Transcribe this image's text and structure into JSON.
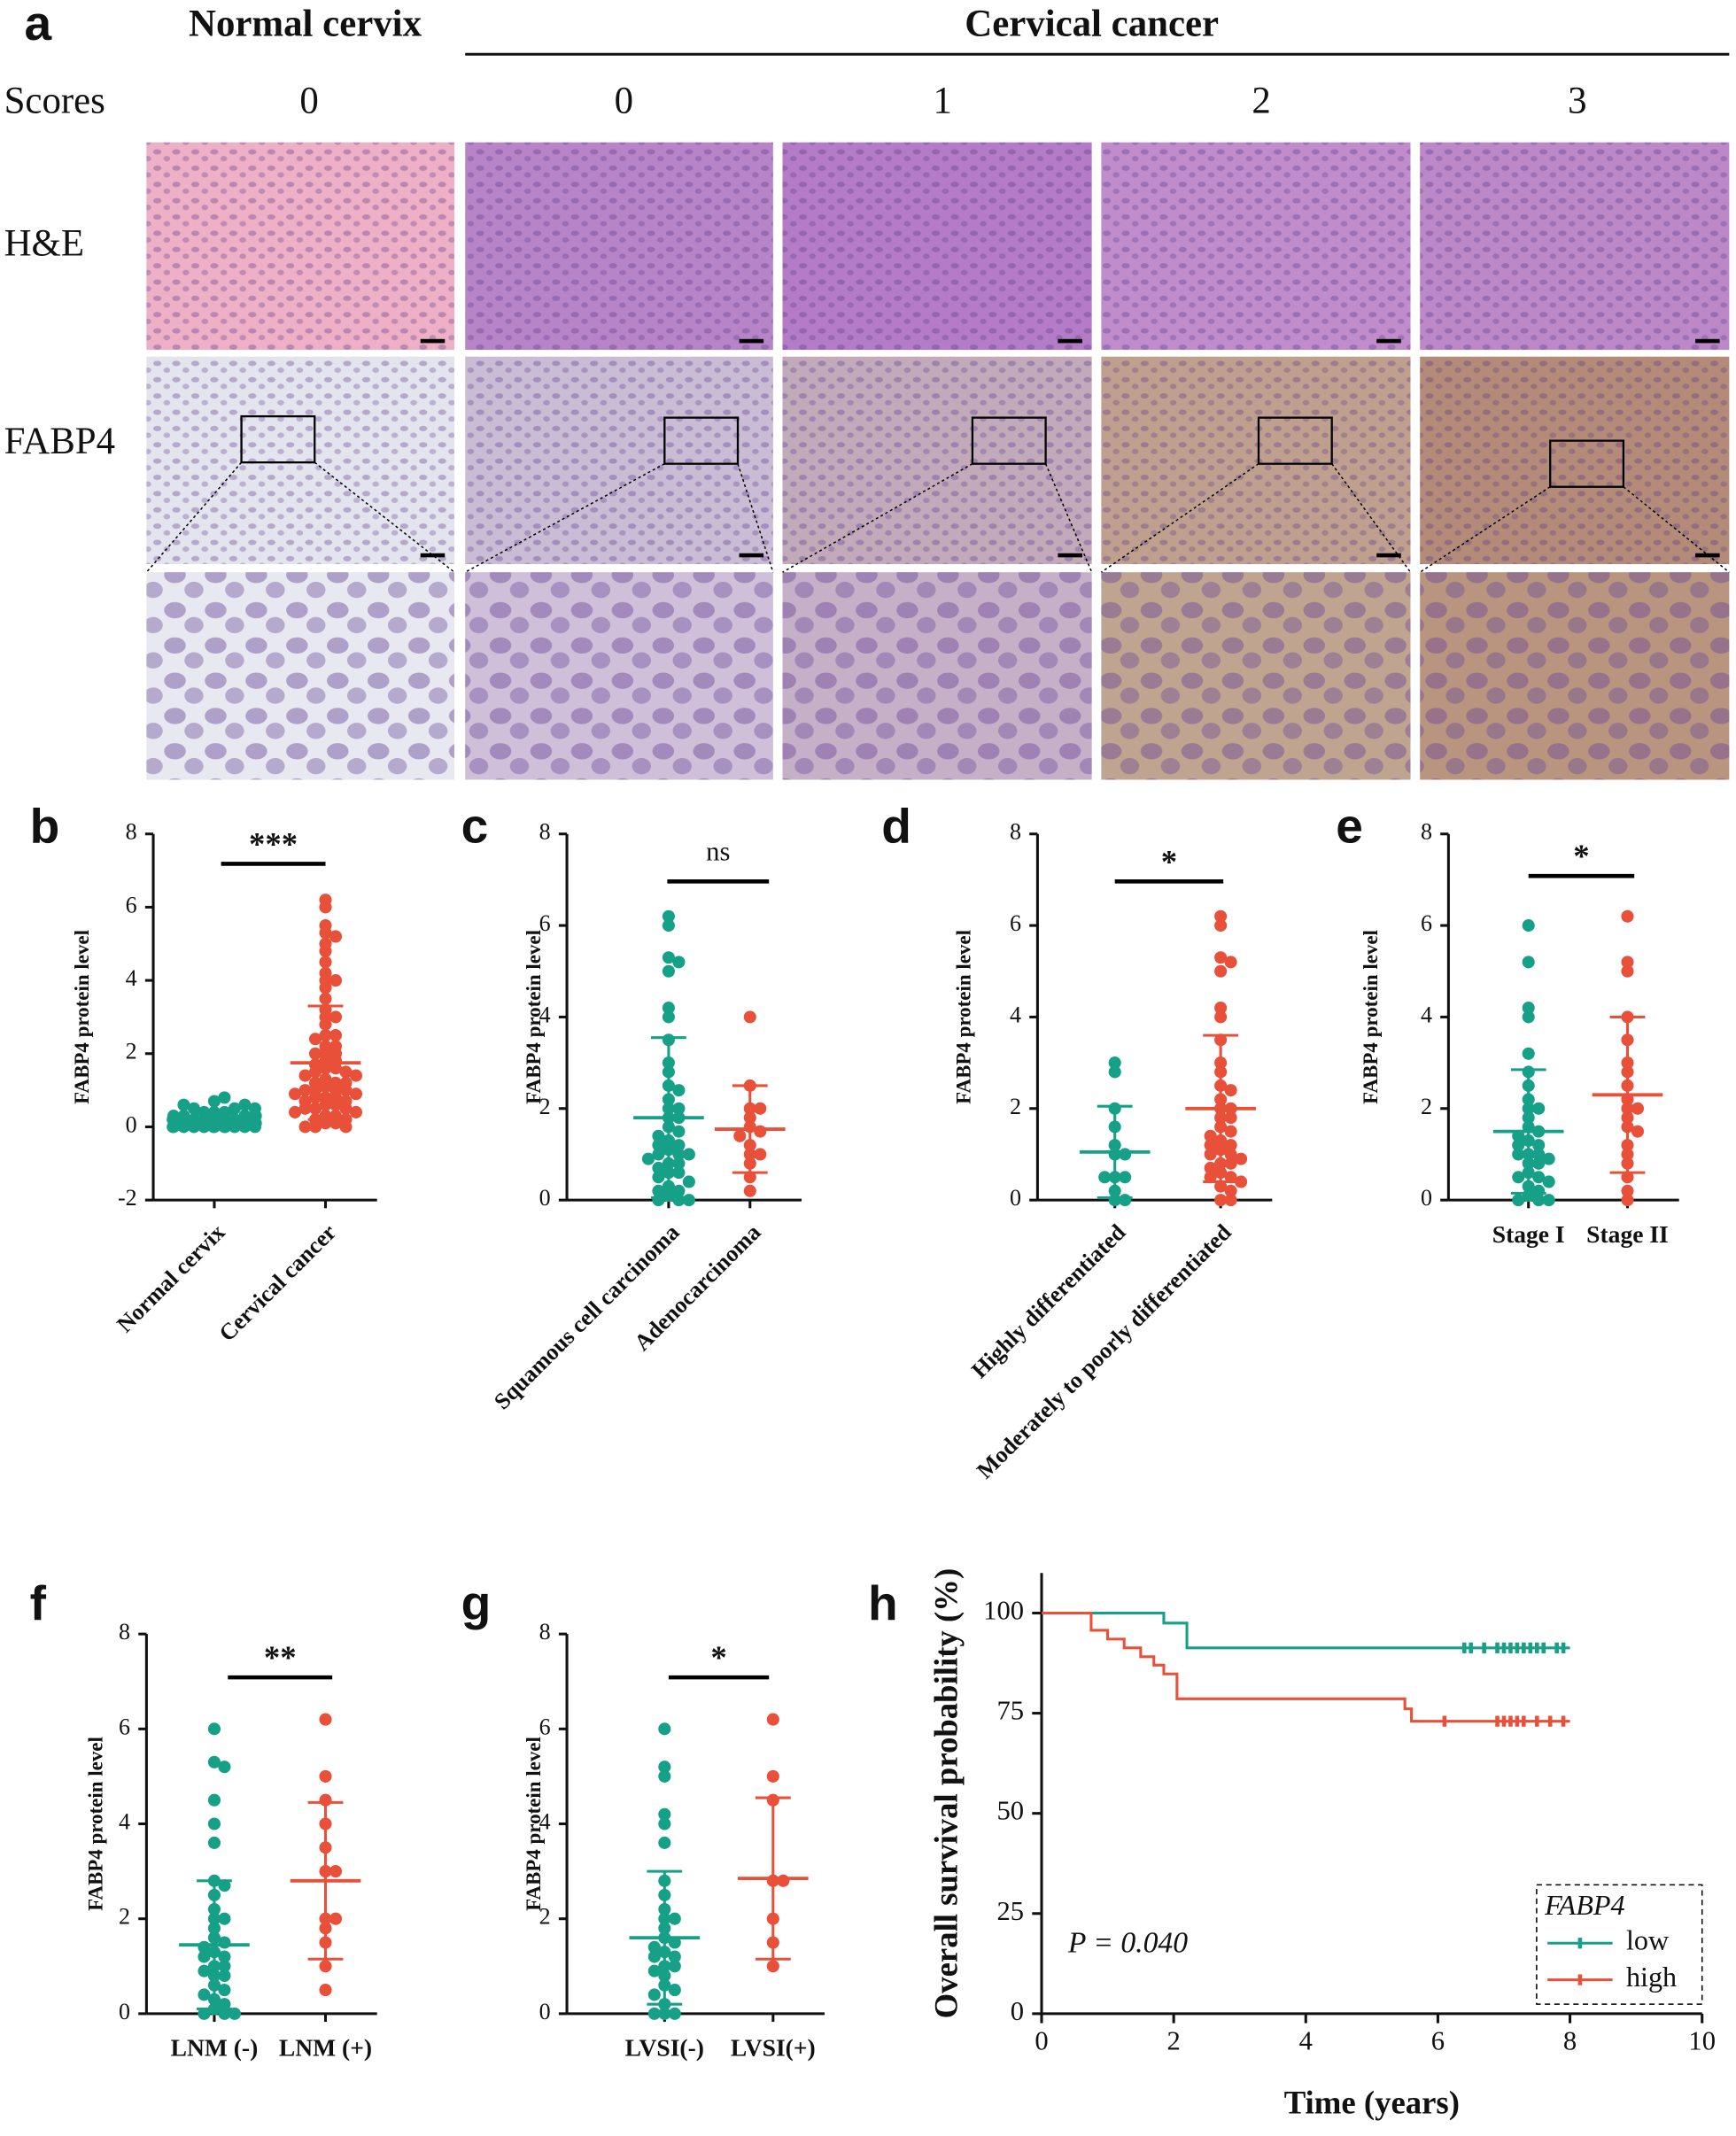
{
  "panel_a": {
    "label": "a",
    "groups": [
      "Normal cervix",
      "Cervical cancer"
    ],
    "scores_label": "Scores",
    "scores": [
      "0",
      "0",
      "1",
      "2",
      "3"
    ],
    "rows": [
      "H&E",
      "FABP4"
    ]
  },
  "chart_data": [
    {
      "type": "dotplot",
      "panel": "b",
      "ylabel": "FABP4 protein level",
      "ylim": [
        -2,
        8
      ],
      "yticks": [
        -2,
        0,
        2,
        4,
        6,
        8
      ],
      "categories": [
        "Normal cervix",
        "Cervical cancer"
      ],
      "significance": "***",
      "groups": [
        {
          "color": "#17a088",
          "mean": 0.15,
          "sd": 0.2,
          "values": [
            0,
            0,
            0,
            0,
            0,
            0,
            0,
            0,
            0,
            0,
            0.1,
            0.1,
            0.1,
            0.1,
            0.1,
            0.1,
            0.2,
            0.2,
            0.2,
            0.2,
            0.2,
            0.3,
            0.3,
            0.3,
            0.3,
            0.4,
            0.4,
            0.4,
            0.5,
            0.5,
            0.6,
            0.6,
            0.7,
            0.8,
            0,
            0,
            0.1,
            0.2,
            0.3,
            0.5
          ]
        },
        {
          "color": "#e8503a",
          "mean": 1.75,
          "sd": 1.55,
          "values": [
            6.2,
            6.0,
            5.5,
            5.3,
            5.2,
            5.0,
            4.8,
            4.5,
            4.2,
            4.0,
            4.0,
            3.8,
            3.5,
            3.2,
            3.0,
            3.0,
            2.8,
            2.5,
            2.5,
            2.4,
            2.2,
            2.2,
            2.0,
            2.0,
            2.0,
            1.8,
            1.8,
            1.7,
            1.6,
            1.6,
            1.5,
            1.5,
            1.4,
            1.4,
            1.3,
            1.2,
            1.2,
            1.2,
            1.1,
            1.0,
            1.0,
            1.0,
            1.0,
            0.9,
            0.9,
            0.8,
            0.8,
            0.8,
            0.7,
            0.7,
            0.6,
            0.6,
            0.5,
            0.5,
            0.5,
            0.4,
            0.4,
            0.3,
            0.3,
            0.2,
            0.2,
            0.1,
            0.1,
            0,
            0,
            0
          ]
        }
      ]
    },
    {
      "type": "dotplot",
      "panel": "c",
      "ylabel": "FABP4 protein level",
      "ylim": [
        0,
        8
      ],
      "yticks": [
        0,
        2,
        4,
        6,
        8
      ],
      "categories": [
        "Squamous cell carcinoma",
        "Adenocarcinoma"
      ],
      "significance": "ns",
      "groups": [
        {
          "color": "#17a088",
          "mean": 1.8,
          "sd": 1.75,
          "values": [
            6.2,
            6.0,
            5.3,
            5.2,
            5.0,
            4.2,
            4.0,
            3.5,
            3.0,
            2.8,
            2.5,
            2.4,
            2.2,
            2.0,
            2.0,
            1.8,
            1.8,
            1.6,
            1.5,
            1.4,
            1.3,
            1.2,
            1.2,
            1.1,
            1.0,
            1.0,
            1.0,
            0.9,
            0.8,
            0.8,
            0.7,
            0.6,
            0.6,
            0.5,
            0.4,
            0.3,
            0.2,
            0.2,
            0.1,
            0,
            0,
            0
          ]
        },
        {
          "color": "#e8503a",
          "mean": 1.55,
          "sd": 0.95,
          "values": [
            4.0,
            2.5,
            2.0,
            2.0,
            1.8,
            1.6,
            1.5,
            1.4,
            1.2,
            1.0,
            1.0,
            0.8,
            0.5,
            0.2
          ]
        }
      ]
    },
    {
      "type": "dotplot",
      "panel": "d",
      "ylabel": "FABP4 protein level",
      "ylim": [
        0,
        8
      ],
      "yticks": [
        0,
        2,
        4,
        6,
        8
      ],
      "categories": [
        "Highly differentiated",
        "Moderately to poorly differentiated"
      ],
      "significance": "*",
      "groups": [
        {
          "color": "#17a088",
          "mean": 1.05,
          "sd": 1.0,
          "values": [
            3.0,
            2.8,
            2.0,
            1.6,
            1.2,
            1.0,
            1.0,
            0.5,
            0.5,
            0.5,
            0.2,
            0,
            0
          ]
        },
        {
          "color": "#e8503a",
          "mean": 2.0,
          "sd": 1.6,
          "values": [
            6.2,
            6.0,
            5.3,
            5.2,
            5.0,
            4.2,
            4.0,
            3.5,
            3.0,
            2.8,
            2.5,
            2.4,
            2.2,
            2.0,
            2.0,
            1.8,
            1.8,
            1.6,
            1.5,
            1.4,
            1.3,
            1.2,
            1.2,
            1.1,
            1.0,
            1.0,
            0.9,
            0.8,
            0.8,
            0.7,
            0.6,
            0.5,
            0.5,
            0.4,
            0.3,
            0.2,
            0,
            0
          ]
        }
      ]
    },
    {
      "type": "dotplot",
      "panel": "e",
      "ylabel": "FABP4 protein level",
      "ylim": [
        0,
        8
      ],
      "yticks": [
        0,
        2,
        4,
        6,
        8
      ],
      "categories": [
        "Stage I",
        "Stage II"
      ],
      "significance": "*",
      "groups": [
        {
          "color": "#17a088",
          "mean": 1.5,
          "sd": 1.35,
          "values": [
            6.0,
            5.2,
            4.2,
            4.0,
            3.2,
            2.8,
            2.5,
            2.2,
            2.0,
            2.0,
            1.8,
            1.6,
            1.5,
            1.4,
            1.3,
            1.2,
            1.2,
            1.0,
            1.0,
            1.0,
            0.9,
            0.8,
            0.8,
            0.6,
            0.5,
            0.5,
            0.4,
            0.3,
            0.2,
            0.1,
            0,
            0,
            0
          ]
        },
        {
          "color": "#e8503a",
          "mean": 2.3,
          "sd": 1.7,
          "values": [
            6.2,
            5.2,
            5.0,
            4.0,
            3.5,
            3.0,
            2.8,
            2.5,
            2.2,
            2.0,
            2.0,
            1.8,
            1.6,
            1.5,
            1.2,
            1.0,
            0.8,
            0.5,
            0.2,
            0
          ]
        }
      ]
    },
    {
      "type": "dotplot",
      "panel": "f",
      "ylabel": "FABP4 protein level",
      "ylim": [
        0,
        8
      ],
      "yticks": [
        0,
        2,
        4,
        6,
        8
      ],
      "categories": [
        "LNM (-)",
        "LNM (+)"
      ],
      "significance": "**",
      "groups": [
        {
          "color": "#17a088",
          "mean": 1.45,
          "sd": 1.35,
          "values": [
            6.0,
            5.3,
            5.2,
            4.5,
            4.0,
            3.6,
            2.8,
            2.7,
            2.5,
            2.2,
            2.0,
            2.0,
            1.8,
            1.6,
            1.5,
            1.4,
            1.3,
            1.2,
            1.2,
            1.0,
            1.0,
            0.9,
            0.8,
            0.8,
            0.6,
            0.5,
            0.4,
            0.3,
            0.2,
            0.1,
            0,
            0,
            0
          ]
        },
        {
          "color": "#e8503a",
          "mean": 2.8,
          "sd": 1.65,
          "values": [
            6.2,
            5.0,
            4.5,
            4.0,
            3.5,
            3.0,
            3.0,
            2.0,
            2.0,
            1.8,
            1.5,
            1.0,
            0.5
          ]
        }
      ]
    },
    {
      "type": "dotplot",
      "panel": "g",
      "ylabel": "FABP4 protein level",
      "ylim": [
        0,
        8
      ],
      "yticks": [
        0,
        2,
        4,
        6,
        8
      ],
      "categories": [
        "LVSI(-)",
        "LVSI(+)"
      ],
      "significance": "*",
      "groups": [
        {
          "color": "#17a088",
          "mean": 1.6,
          "sd": 1.4,
          "values": [
            6.0,
            5.2,
            5.0,
            4.2,
            4.0,
            3.6,
            2.8,
            2.5,
            2.2,
            2.0,
            2.0,
            1.8,
            1.6,
            1.5,
            1.4,
            1.3,
            1.2,
            1.2,
            1.0,
            1.0,
            0.9,
            0.8,
            0.6,
            0.5,
            0.4,
            0.2,
            0,
            0,
            0
          ]
        },
        {
          "color": "#e8503a",
          "mean": 2.85,
          "sd": 1.7,
          "values": [
            6.2,
            5.0,
            4.5,
            2.8,
            2.8,
            2.0,
            1.5,
            1.0
          ]
        }
      ]
    },
    {
      "type": "km",
      "panel": "h",
      "xlabel": "Time (years)",
      "ylabel": "Overall survival probability (%)",
      "xlim": [
        0,
        10
      ],
      "xticks": [
        0,
        2,
        4,
        6,
        8,
        10
      ],
      "ylim": [
        0,
        110
      ],
      "yticks": [
        0,
        25,
        50,
        75,
        100
      ],
      "annotation": "P = 0.040",
      "legend_title": "FABP4",
      "legend": "bottom-right",
      "series": [
        {
          "name": "low",
          "color": "#17a088",
          "x": [
            0,
            1.85,
            2.2,
            8.0
          ],
          "values": [
            100,
            97.5,
            91.3,
            91.3
          ],
          "censor_x": [
            6.4,
            6.5,
            6.7,
            6.9,
            7.0,
            7.1,
            7.2,
            7.3,
            7.4,
            7.5,
            7.6,
            7.8,
            7.9
          ],
          "censor_values": [
            91.3,
            91.3,
            91.3,
            91.3,
            91.3,
            91.3,
            91.3,
            91.3,
            91.3,
            91.3,
            91.3,
            91.3,
            91.3
          ]
        },
        {
          "name": "high",
          "color": "#e8503a",
          "x": [
            0,
            0.75,
            1.0,
            1.25,
            1.5,
            1.7,
            1.85,
            2.05,
            5.5,
            5.6,
            8.0
          ],
          "values": [
            100,
            95.7,
            93.5,
            91.3,
            89.1,
            87.0,
            84.8,
            78.6,
            76.1,
            73.0,
            73.0
          ],
          "censor_x": [
            6.1,
            6.9,
            7.0,
            7.1,
            7.2,
            7.3,
            7.5,
            7.7,
            7.9
          ],
          "censor_values": [
            73.0,
            73.0,
            73.0,
            73.0,
            73.0,
            73.0,
            73.0,
            73.0,
            73.0
          ]
        }
      ]
    }
  ]
}
